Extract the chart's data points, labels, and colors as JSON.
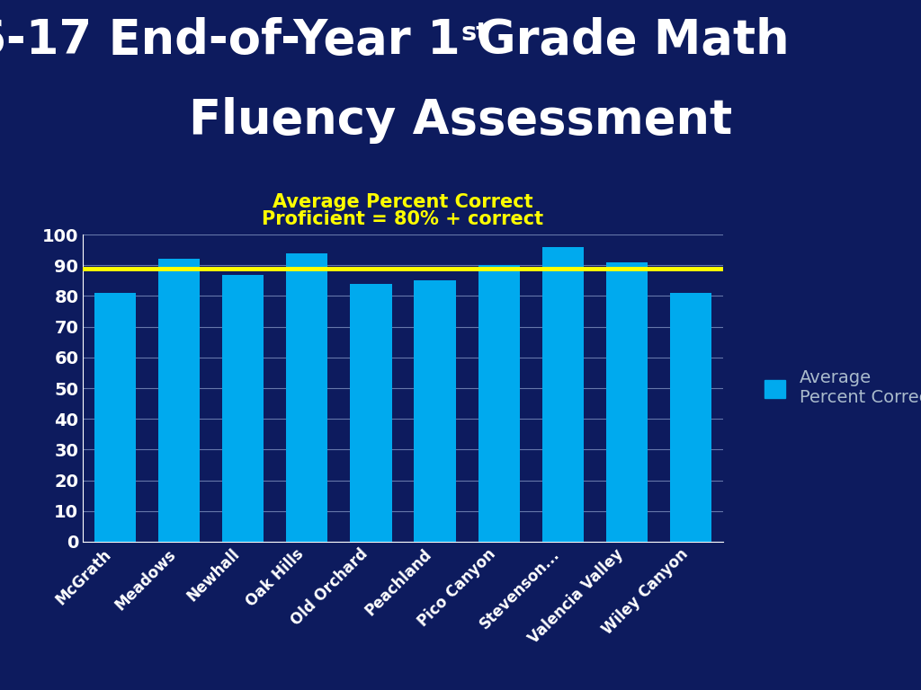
{
  "categories": [
    "McGrath",
    "Meadows",
    "Newhall",
    "Oak Hills",
    "Old Orchard",
    "Peachland",
    "Pico Canyon",
    "Stevenson...",
    "Valencia Valley",
    "Wiley Canyon"
  ],
  "values": [
    81,
    92,
    87,
    94,
    84,
    85,
    90,
    96,
    91,
    81
  ],
  "bar_color": "#00AAEE",
  "background_color": "#0D1B5E",
  "title_color": "#FFFFFF",
  "subtitle_color": "#FFFF00",
  "tick_label_color": "#FFFFFF",
  "grid_color": "#6677AA",
  "reference_line_value": 89,
  "reference_line_color": "#FFFF00",
  "ylim": [
    0,
    100
  ],
  "yticks": [
    0,
    10,
    20,
    30,
    40,
    50,
    60,
    70,
    80,
    90,
    100
  ],
  "legend_text_color": "#AABBCC",
  "legend_color": "#00AAEE",
  "subtitle_line1": "Average Percent Correct",
  "subtitle_line2": "Proficient = 80% + correct",
  "title_fontsize": 38,
  "subtitle_fontsize": 15,
  "tick_fontsize": 14,
  "xtick_fontsize": 12
}
